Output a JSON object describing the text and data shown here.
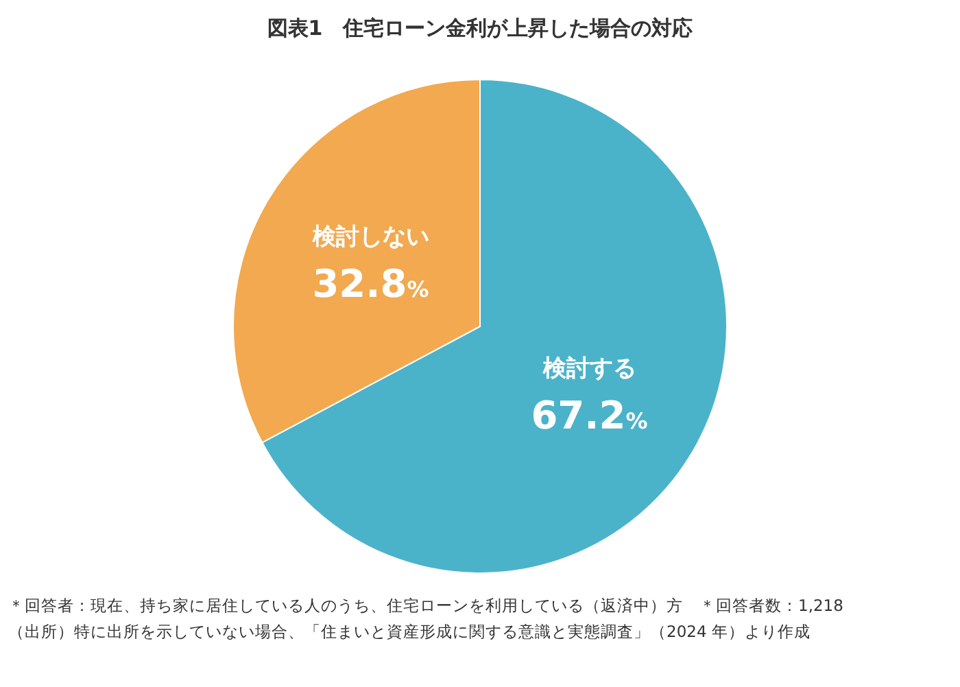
{
  "chart_data": {
    "type": "pie",
    "title": "図表1　住宅ローン金利が上昇した場合の対応",
    "categories": [
      "検討する",
      "検討しない"
    ],
    "values": [
      67.2,
      32.8
    ],
    "colors": [
      "#4bb3c9",
      "#f2a94f"
    ],
    "value_labels": [
      "67.2%",
      "32.8%"
    ],
    "legend": false,
    "annotations": [
      "＊回答者：現在、持ち家に居住している人のうち、住宅ローンを利用している（返済中）方",
      "＊回答者数：1,218",
      "（出所）特に出所を示していない場合、「住まいと資産形成に関する意識と実態調査」（2024 年）より作成"
    ]
  }
}
